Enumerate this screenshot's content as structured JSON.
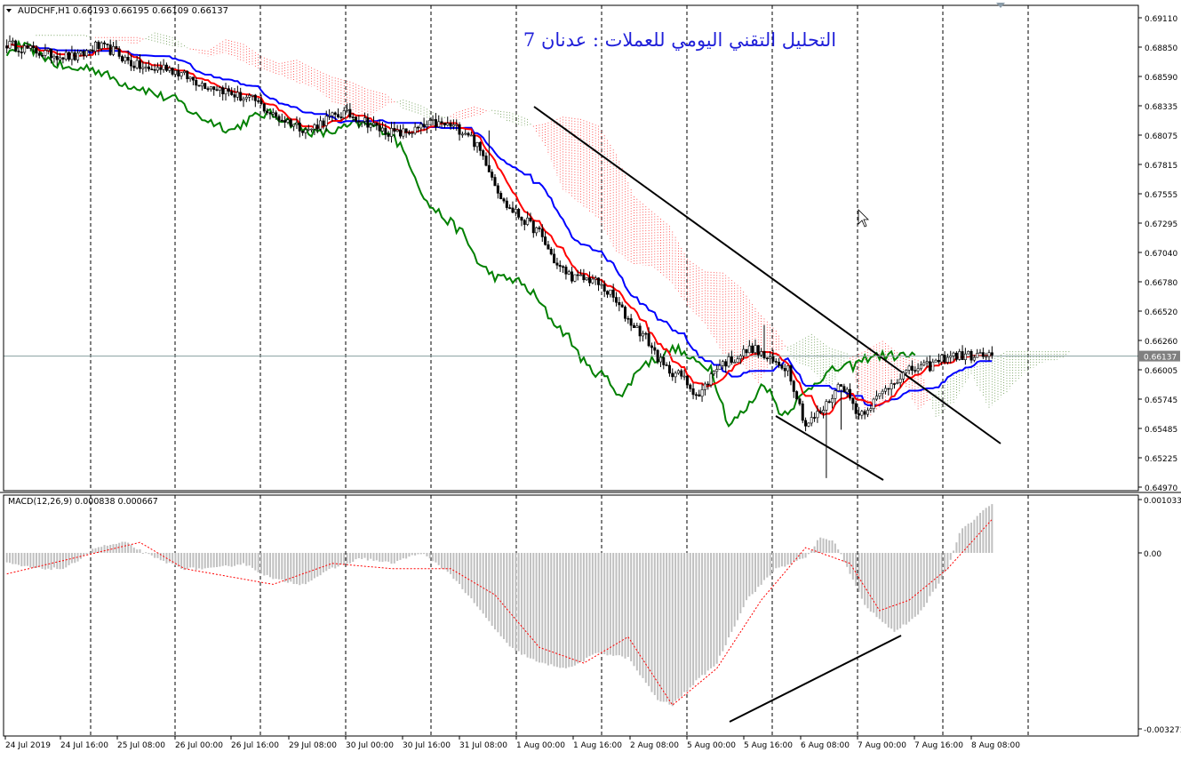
{
  "symbol_header": {
    "symbol": "AUDCHF,H1",
    "ohlc": "0.66193 0.66195 0.66109 0.66137"
  },
  "chart_title": "التحليل التقني اليومي للعملات : عدنان 7",
  "macd_header": "MACD(12,26,9) 0.000838 0.000667",
  "current_price_label": "0.66137",
  "colors": {
    "bull_candle": "#ffffff",
    "bear_candle": "#000000",
    "kijun": "#0000ff",
    "tenkan": "#ff0000",
    "chikou": "#008000",
    "cloud": "#ff0000",
    "macd_hist": "#c0c0c0",
    "macd_signal": "#ff0000",
    "trendline": "#000000",
    "price_line": "#87a0a0"
  },
  "chart_data": [
    {
      "type": "candlestick",
      "title": "AUDCHF,H1",
      "y_tick_labels": [
        "0.69110",
        "0.68850",
        "0.68590",
        "0.68335",
        "0.68075",
        "0.67815",
        "0.67555",
        "0.67295",
        "0.67040",
        "0.66780",
        "0.66520",
        "0.66260",
        "0.66005",
        "0.65745",
        "0.65485",
        "0.65225",
        "0.64970"
      ],
      "x_tick_labels": [
        "24 Jul 2019",
        "24 Jul 16:00",
        "25 Jul 08:00",
        "26 Jul 00:00",
        "26 Jul 16:00",
        "29 Jul 08:00",
        "30 Jul 00:00",
        "30 Jul 16:00",
        "31 Jul 08:00",
        "1 Aug 00:00",
        "1 Aug 16:00",
        "2 Aug 08:00",
        "5 Aug 00:00",
        "5 Aug 16:00",
        "6 Aug 08:00",
        "7 Aug 00:00",
        "7 Aug 16:00",
        "8 Aug 08:00"
      ],
      "ylim": [
        0.6493,
        0.6915
      ],
      "current_price": 0.66137,
      "grid": "vertical dashed",
      "indicators": [
        "Ichimoku cloud",
        "Tenkan-sen",
        "Kijun-sen",
        "Chikou span"
      ],
      "close_path": [
        [
          0,
          0.6888
        ],
        [
          6,
          0.6884
        ],
        [
          12,
          0.688
        ],
        [
          18,
          0.6878
        ],
        [
          24,
          0.6876
        ],
        [
          30,
          0.6886
        ],
        [
          36,
          0.6882
        ],
        [
          42,
          0.6871
        ],
        [
          48,
          0.6865
        ],
        [
          54,
          0.6868
        ],
        [
          60,
          0.686
        ],
        [
          66,
          0.6853
        ],
        [
          72,
          0.6849
        ],
        [
          78,
          0.6842
        ],
        [
          84,
          0.6838
        ],
        [
          90,
          0.6825
        ],
        [
          96,
          0.6819
        ],
        [
          102,
          0.6812
        ],
        [
          108,
          0.6822
        ],
        [
          114,
          0.6827
        ],
        [
          120,
          0.6822
        ],
        [
          126,
          0.6813
        ],
        [
          132,
          0.6809
        ],
        [
          138,
          0.6812
        ],
        [
          144,
          0.6818
        ],
        [
          150,
          0.6816
        ],
        [
          156,
          0.681
        ],
        [
          162,
          0.6785
        ],
        [
          168,
          0.6748
        ],
        [
          174,
          0.6735
        ],
        [
          180,
          0.6722
        ],
        [
          186,
          0.6693
        ],
        [
          192,
          0.6682
        ],
        [
          198,
          0.6681
        ],
        [
          204,
          0.6668
        ],
        [
          210,
          0.6646
        ],
        [
          216,
          0.663
        ],
        [
          222,
          0.6604
        ],
        [
          228,
          0.6596
        ],
        [
          234,
          0.6578
        ],
        [
          240,
          0.6605
        ],
        [
          246,
          0.6612
        ],
        [
          252,
          0.6621
        ],
        [
          258,
          0.6609
        ],
        [
          264,
          0.6604
        ],
        [
          270,
          0.6553
        ],
        [
          276,
          0.6567
        ],
        [
          282,
          0.6591
        ],
        [
          288,
          0.6562
        ],
        [
          294,
          0.6576
        ],
        [
          300,
          0.6593
        ],
        [
          306,
          0.6602
        ],
        [
          312,
          0.6605
        ],
        [
          318,
          0.6614
        ]
      ],
      "annotations": [
        "descending trendline",
        "descending support line"
      ]
    },
    {
      "type": "bar",
      "title": "MACD(12,26,9) 0.000838 0.000667",
      "y_tick_labels": [
        "0.001033",
        "0.00",
        "-0.003271"
      ],
      "ylim": [
        -0.003271,
        0.001033
      ],
      "series": [
        {
          "values_path": [
            [
              0,
              -0.0002
            ],
            [
              10,
              -0.0003
            ],
            [
              20,
              -0.0003
            ],
            [
              30,
              0.0001
            ],
            [
              40,
              0.0002
            ],
            [
              50,
              -0.0001
            ],
            [
              60,
              -0.0003
            ],
            [
              70,
              -0.0003
            ],
            [
              80,
              -0.0002
            ],
            [
              90,
              -0.0005
            ],
            [
              100,
              -0.0006
            ],
            [
              110,
              -0.0003
            ],
            [
              120,
              -0.0001
            ],
            [
              130,
              -0.0002
            ],
            [
              140,
              0.0
            ],
            [
              150,
              -0.0004
            ],
            [
              160,
              -0.0011
            ],
            [
              170,
              -0.0018
            ],
            [
              180,
              -0.0021
            ],
            [
              190,
              -0.0022
            ],
            [
              200,
              -0.0019
            ],
            [
              210,
              -0.002
            ],
            [
              220,
              -0.0028
            ],
            [
              225,
              -0.0029
            ],
            [
              232,
              -0.0025
            ],
            [
              240,
              -0.0021
            ],
            [
              250,
              -0.0009
            ],
            [
              260,
              -0.0003
            ],
            [
              270,
              -0.0001
            ],
            [
              275,
              0.0003
            ],
            [
              280,
              0.0002
            ],
            [
              290,
              -0.001
            ],
            [
              300,
              -0.0015
            ],
            [
              308,
              -0.0012
            ],
            [
              318,
              -0.0003
            ],
            [
              322,
              0.0004
            ],
            [
              330,
              0.0008
            ],
            [
              334,
              0.001
            ]
          ]
        },
        {
          "name": "signal",
          "values_path": [
            [
              0,
              -0.0004
            ],
            [
              30,
              0.0
            ],
            [
              45,
              0.0002
            ],
            [
              60,
              -0.0003
            ],
            [
              90,
              -0.0006
            ],
            [
              110,
              -0.0002
            ],
            [
              130,
              -0.0003
            ],
            [
              150,
              -0.0003
            ],
            [
              165,
              -0.0008
            ],
            [
              180,
              -0.0018
            ],
            [
              195,
              -0.0021
            ],
            [
              210,
              -0.0016
            ],
            [
              225,
              -0.0029
            ],
            [
              240,
              -0.0022
            ],
            [
              255,
              -0.0009
            ],
            [
              270,
              0.0001
            ],
            [
              285,
              -0.0002
            ],
            [
              295,
              -0.0011
            ],
            [
              305,
              -0.0009
            ],
            [
              318,
              -0.0003
            ],
            [
              334,
              0.0007
            ]
          ]
        }
      ],
      "annotations": [
        "rising divergence line"
      ]
    }
  ]
}
